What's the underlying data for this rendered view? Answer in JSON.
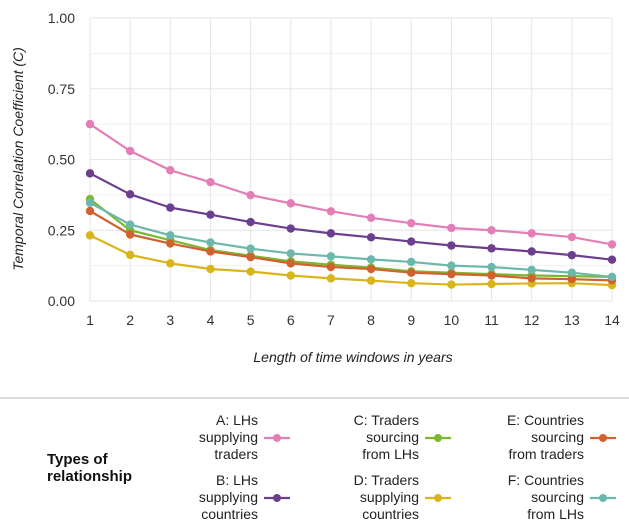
{
  "chart_data": {
    "type": "line",
    "title": "",
    "xlabel": "Length of time windows in years",
    "ylabel": "Temporal Correlation Coefficient (C)",
    "x": [
      1,
      2,
      3,
      4,
      5,
      6,
      7,
      8,
      9,
      10,
      11,
      12,
      13,
      14
    ],
    "x_ticks": [
      "1",
      "2",
      "3",
      "4",
      "5",
      "6",
      "7",
      "8",
      "9",
      "10",
      "11",
      "12",
      "13",
      "14"
    ],
    "xlim": [
      1,
      14
    ],
    "ylim": [
      0,
      1
    ],
    "y_ticks": [
      "0.00",
      "0.25",
      "0.50",
      "0.75",
      "1.00"
    ],
    "grid": true,
    "legend_title": "Types of relationship",
    "legend_position": "bottom",
    "series": [
      {
        "key": "A",
        "name": "A: LHs supplying traders",
        "color": "#e37fb6",
        "values": [
          0.625,
          0.53,
          0.462,
          0.42,
          0.374,
          0.345,
          0.317,
          0.294,
          0.275,
          0.258,
          0.25,
          0.239,
          0.226,
          0.2
        ]
      },
      {
        "key": "B",
        "name": "B: LHs supplying countries",
        "color": "#6b3f8e",
        "values": [
          0.451,
          0.377,
          0.33,
          0.305,
          0.279,
          0.256,
          0.239,
          0.225,
          0.21,
          0.196,
          0.186,
          0.175,
          0.162,
          0.146
        ]
      },
      {
        "key": "C",
        "name": "C: Traders sourcing from LHs",
        "color": "#7cb82f",
        "values": [
          0.36,
          0.25,
          0.215,
          0.18,
          0.16,
          0.14,
          0.128,
          0.118,
          0.105,
          0.1,
          0.095,
          0.09,
          0.088,
          0.085
        ]
      },
      {
        "key": "D",
        "name": "D: Traders supplying countries",
        "color": "#d9b51c",
        "values": [
          0.232,
          0.163,
          0.133,
          0.113,
          0.104,
          0.09,
          0.08,
          0.072,
          0.063,
          0.058,
          0.06,
          0.062,
          0.063,
          0.056
        ]
      },
      {
        "key": "E",
        "name": "E: Countries sourcing from traders",
        "color": "#d1622f",
        "values": [
          0.318,
          0.235,
          0.203,
          0.175,
          0.155,
          0.133,
          0.12,
          0.113,
          0.1,
          0.095,
          0.09,
          0.08,
          0.077,
          0.073
        ]
      },
      {
        "key": "F",
        "name": "F: Countries sourcing from LHs",
        "color": "#6cb8ad",
        "values": [
          0.347,
          0.27,
          0.232,
          0.207,
          0.185,
          0.168,
          0.158,
          0.147,
          0.138,
          0.125,
          0.12,
          0.11,
          0.1,
          0.085
        ]
      }
    ]
  }
}
